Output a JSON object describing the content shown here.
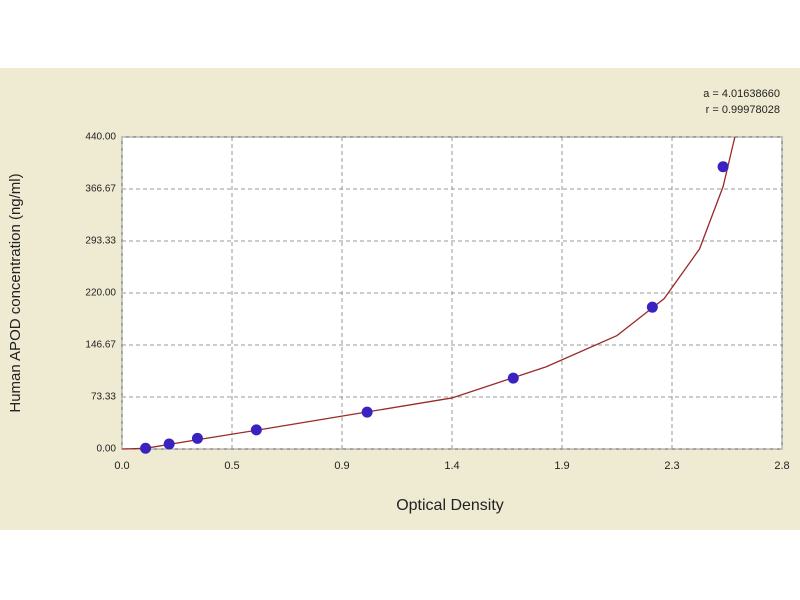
{
  "chart_data": {
    "type": "scatter",
    "x_label": "Optical Density",
    "y_label": "Human APOD concentration (ng/ml)",
    "annotations": [
      "a = 4.01638660",
      "r = 0.99978028"
    ],
    "x": [
      0.1,
      0.2,
      0.32,
      0.57,
      1.04,
      1.66,
      2.25,
      2.55
    ],
    "values": [
      1,
      7,
      15,
      27,
      52,
      100,
      200,
      398
    ],
    "color": "#3a22c0",
    "fit": {
      "x": [
        0,
        0.1,
        0.3,
        0.6,
        1.0,
        1.4,
        1.8,
        2.1,
        2.3,
        2.45,
        2.55,
        2.6
      ],
      "values": [
        0,
        1,
        12,
        28,
        50,
        72,
        116,
        160,
        212,
        282,
        370,
        440
      ],
      "color": "#9a2a2a"
    },
    "xlim": [
      0,
      2.8
    ],
    "ylim": [
      0,
      440
    ],
    "xticks": [
      {
        "value": 0,
        "label": "0.0"
      },
      {
        "value": 0.4667,
        "label": "0.5"
      },
      {
        "value": 0.9333,
        "label": "0.9"
      },
      1.4,
      {
        "value": 1.8667,
        "label": "1.9"
      },
      {
        "value": 2.3333,
        "label": "2.3"
      },
      2.8
    ],
    "yticks": [
      {
        "value": 0,
        "label": "0.00"
      },
      73.33,
      146.67,
      {
        "value": 220,
        "label": "220.00"
      },
      293.33,
      366.67,
      {
        "value": 440,
        "label": "440.00"
      }
    ],
    "grid": true
  }
}
